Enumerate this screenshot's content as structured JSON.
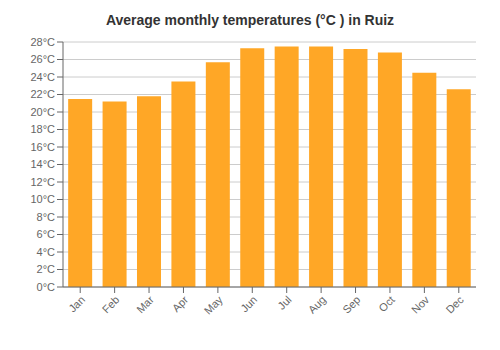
{
  "chart_data": {
    "type": "bar",
    "title": "Average monthly temperatures (°C ) in Ruiz",
    "categories": [
      "Jan",
      "Feb",
      "Mar",
      "Apr",
      "May",
      "Jun",
      "Jul",
      "Aug",
      "Sep",
      "Oct",
      "Nov",
      "Dec"
    ],
    "values": [
      21.5,
      21.2,
      21.8,
      23.5,
      25.7,
      27.3,
      27.5,
      27.5,
      27.2,
      26.8,
      24.5,
      22.6
    ],
    "color": "#FFA726",
    "ylim": [
      0,
      28
    ],
    "yticks": [
      {
        "value": 0,
        "label": "0°C"
      },
      {
        "value": 2,
        "label": "2°C"
      },
      {
        "value": 4,
        "label": "4°C"
      },
      {
        "value": 6,
        "label": "6°C"
      },
      {
        "value": 8,
        "label": "8°C"
      },
      {
        "value": 10,
        "label": "10°C"
      },
      {
        "value": 12,
        "label": "12°C"
      },
      {
        "value": 14,
        "label": "14°C"
      },
      {
        "value": 16,
        "label": "16°C"
      },
      {
        "value": 18,
        "label": "18°C"
      },
      {
        "value": 20,
        "label": "20°C"
      },
      {
        "value": 22,
        "label": "22°C"
      },
      {
        "value": 24,
        "label": "24°C"
      },
      {
        "value": 26,
        "label": "26°C"
      },
      {
        "value": 28,
        "label": "28°C"
      }
    ],
    "grid": true
  }
}
